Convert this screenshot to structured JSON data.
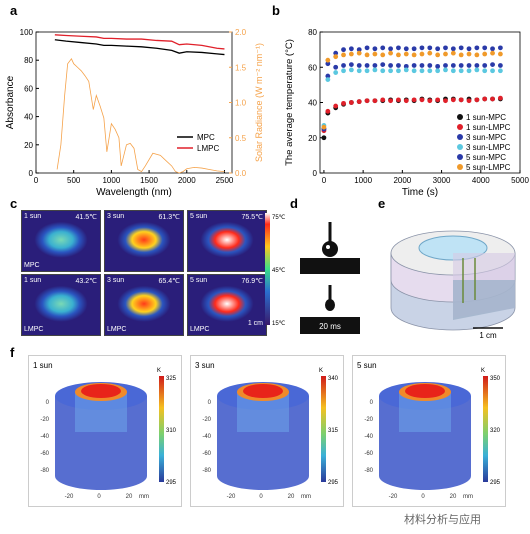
{
  "panels": {
    "a": "a",
    "b": "b",
    "c": "c",
    "d": "d",
    "e": "e",
    "f": "f"
  },
  "chart_data": [
    {
      "type": "line",
      "panel": "a",
      "xlabel": "Wavelength (nm)",
      "ylabel": "Absorbance",
      "y2label": "Solar Radiance (W m⁻² nm⁻¹)",
      "xlim": [
        0,
        2600
      ],
      "ylim": [
        0,
        100
      ],
      "y2lim": [
        0,
        2.0
      ],
      "xticks": [
        "0",
        "500",
        "1000",
        "1500",
        "2000",
        "2500"
      ],
      "yticks": [
        "0",
        "20",
        "40",
        "60",
        "80",
        "100"
      ],
      "y2ticks": [
        "0.0",
        "0.5",
        "1.0",
        "1.5",
        "2.0"
      ],
      "legend": "bottom-right",
      "series": [
        {
          "name": "MPC",
          "color": "#000000",
          "x": [
            250,
            400,
            600,
            800,
            900,
            1000,
            1200,
            1400,
            1600,
            1800,
            1900,
            2000,
            2200,
            2400,
            2500
          ],
          "values": [
            94.5,
            93.5,
            92.5,
            91.5,
            90.5,
            90.5,
            90,
            89.5,
            88.5,
            87,
            85,
            86,
            85.5,
            84.5,
            84
          ]
        },
        {
          "name": "LMPC",
          "color": "#e0202a",
          "x": [
            250,
            400,
            600,
            800,
            900,
            1000,
            1200,
            1400,
            1600,
            1800,
            1900,
            2000,
            2200,
            2400,
            2500
          ],
          "values": [
            98,
            97.5,
            97,
            96.5,
            95.5,
            95.5,
            95,
            95,
            94,
            93.5,
            91,
            91.5,
            90.5,
            88.5,
            88
          ]
        },
        {
          "name": "Solar",
          "color": "#f5a24a",
          "axis": "right",
          "x": [
            280,
            330,
            380,
            420,
            470,
            500,
            550,
            600,
            650,
            700,
            760,
            800,
            850,
            900,
            940,
            1000,
            1050,
            1100,
            1130,
            1200,
            1250,
            1300,
            1350,
            1400,
            1450,
            1550,
            1650,
            1700,
            1800,
            1850,
            1900,
            1950,
            2000,
            2100,
            2200,
            2300,
            2400,
            2500
          ],
          "values": [
            0.05,
            0.4,
            1.1,
            1.55,
            1.62,
            1.55,
            1.5,
            1.45,
            1.38,
            1.3,
            0.9,
            1.1,
            0.95,
            0.78,
            0.3,
            0.7,
            0.62,
            0.5,
            0.1,
            0.4,
            0.42,
            0.35,
            0.05,
            0.02,
            0.1,
            0.28,
            0.25,
            0.2,
            0.1,
            0.02,
            0.0,
            0.02,
            0.06,
            0.08,
            0.07,
            0.05,
            0.03,
            0.02
          ]
        }
      ]
    },
    {
      "type": "scatter",
      "panel": "b",
      "xlabel": "Time (s)",
      "ylabel": "The average temperature (°C)",
      "xlim": [
        -100,
        5000
      ],
      "ylim": [
        0,
        80
      ],
      "xticks": [
        "0",
        "1000",
        "2000",
        "3000",
        "4000",
        "5000"
      ],
      "yticks": [
        "0",
        "20",
        "40",
        "60",
        "80"
      ],
      "legend": "right",
      "series": [
        {
          "name": "1 sun-MPC",
          "color": "#111111",
          "x": [
            0,
            100,
            300,
            500,
            700,
            900,
            1100,
            1300,
            1500,
            1700,
            1900,
            2100,
            2300,
            2500,
            2700,
            2900,
            3100,
            3300,
            3500,
            3700,
            3900,
            4100,
            4300,
            4500
          ],
          "values": [
            20,
            34,
            37,
            39,
            40,
            40.5,
            41,
            41,
            41,
            41.5,
            41,
            41.5,
            41,
            42,
            41.5,
            41,
            42,
            42,
            41.5,
            42,
            41.5,
            42,
            42,
            42
          ]
        },
        {
          "name": "1 sun-LMPC",
          "color": "#e0202a",
          "x": [
            0,
            100,
            300,
            500,
            700,
            900,
            1100,
            1300,
            1500,
            1700,
            1900,
            2100,
            2300,
            2500,
            2700,
            2900,
            3100,
            3300,
            3500,
            3700,
            3900,
            4100,
            4300,
            4500
          ],
          "values": [
            24,
            35,
            38,
            39.5,
            40,
            40.5,
            41,
            41,
            41.5,
            41,
            41.5,
            41,
            41.5,
            41.5,
            41,
            41.5,
            41,
            41.5,
            41.5,
            41,
            41.5,
            42,
            42,
            42.5
          ]
        },
        {
          "name": "3 sun-MPC",
          "color": "#2a3aa8",
          "x": [
            0,
            100,
            300,
            500,
            700,
            900,
            1100,
            1300,
            1500,
            1700,
            1900,
            2100,
            2300,
            2500,
            2700,
            2900,
            3100,
            3300,
            3500,
            3700,
            3900,
            4100,
            4300,
            4500
          ],
          "values": [
            25,
            55,
            60,
            61,
            61.5,
            61,
            61,
            61,
            61.5,
            61,
            61,
            60.5,
            61,
            61,
            61,
            60.5,
            61,
            61,
            61,
            61,
            61,
            61,
            61.5,
            61
          ]
        },
        {
          "name": "3 sun-LMPC",
          "color": "#5bc8e0",
          "x": [
            0,
            100,
            300,
            500,
            700,
            900,
            1100,
            1300,
            1500,
            1700,
            1900,
            2100,
            2300,
            2500,
            2700,
            2900,
            3100,
            3300,
            3500,
            3700,
            3900,
            4100,
            4300,
            4500
          ],
          "values": [
            27,
            53,
            57,
            58,
            58.5,
            58,
            58,
            58.5,
            58,
            58,
            58,
            58.5,
            58,
            58,
            58,
            58,
            58.5,
            58,
            58,
            58,
            58.5,
            58,
            58,
            58
          ]
        },
        {
          "name": "5 sun-MPC",
          "color": "#2a3aa8",
          "x": [
            0,
            100,
            300,
            500,
            700,
            900,
            1100,
            1300,
            1500,
            1700,
            1900,
            2100,
            2300,
            2500,
            2700,
            2900,
            3100,
            3300,
            3500,
            3700,
            3900,
            4100,
            4300,
            4500
          ],
          "values": [
            25,
            62,
            68,
            70,
            70.5,
            70,
            71,
            70.5,
            71,
            70.5,
            71,
            70.5,
            70.5,
            71,
            71,
            70.5,
            71,
            70.5,
            71,
            70.5,
            71,
            71,
            70.5,
            71
          ]
        },
        {
          "name": "5 sun-LMPC",
          "color": "#f09a2a",
          "x": [
            0,
            100,
            300,
            500,
            700,
            900,
            1100,
            1300,
            1500,
            1700,
            1900,
            2100,
            2300,
            2500,
            2700,
            2900,
            3100,
            3300,
            3500,
            3700,
            3900,
            4100,
            4300,
            4500
          ],
          "values": [
            26,
            64,
            66,
            67,
            67.5,
            68,
            67,
            67.5,
            67,
            68,
            67,
            67.5,
            67,
            67.5,
            68,
            67,
            67.5,
            68,
            67,
            67.5,
            67,
            67.5,
            68,
            67.5
          ]
        }
      ]
    }
  ],
  "thermal": {
    "tiles": [
      {
        "sun": "1 sun",
        "temp": "41.5℃",
        "tag": "MPC",
        "level": 0.2
      },
      {
        "sun": "3 sun",
        "temp": "61.3℃",
        "tag": "",
        "level": 0.65
      },
      {
        "sun": "5 sun",
        "temp": "75.5℃",
        "tag": "",
        "level": 0.95
      },
      {
        "sun": "1 sun",
        "temp": "43.2℃",
        "tag": "LMPC",
        "level": 0.25
      },
      {
        "sun": "3 sun",
        "temp": "65.4℃",
        "tag": "LMPC",
        "level": 0.75
      },
      {
        "sun": "5 sun",
        "temp": "76.9℃",
        "tag": "LMPC",
        "level": 0.98
      }
    ],
    "colorbar": {
      "max": "75℃",
      "mid": "45℃",
      "min": "15℃"
    },
    "scalebar": "1 cm"
  },
  "droplet": {
    "label": "20 ms"
  },
  "device": {
    "scalebar": "1 cm"
  },
  "simulation": {
    "panels": [
      {
        "title": "1 sun",
        "unit": "K",
        "ticks": [
          "325",
          "310",
          "295"
        ]
      },
      {
        "title": "3 sun",
        "unit": "K",
        "ticks": [
          "340",
          "315",
          "295"
        ]
      },
      {
        "title": "5 sun",
        "unit": "K",
        "ticks": [
          "350",
          "320",
          "295"
        ]
      }
    ],
    "axis_ticks": [
      "0",
      "-20",
      "-40",
      "-60",
      "-80"
    ],
    "bottom_ticks": [
      "-20",
      "0",
      "20"
    ],
    "mm": "mm"
  },
  "watermark": "材料分析与应用"
}
